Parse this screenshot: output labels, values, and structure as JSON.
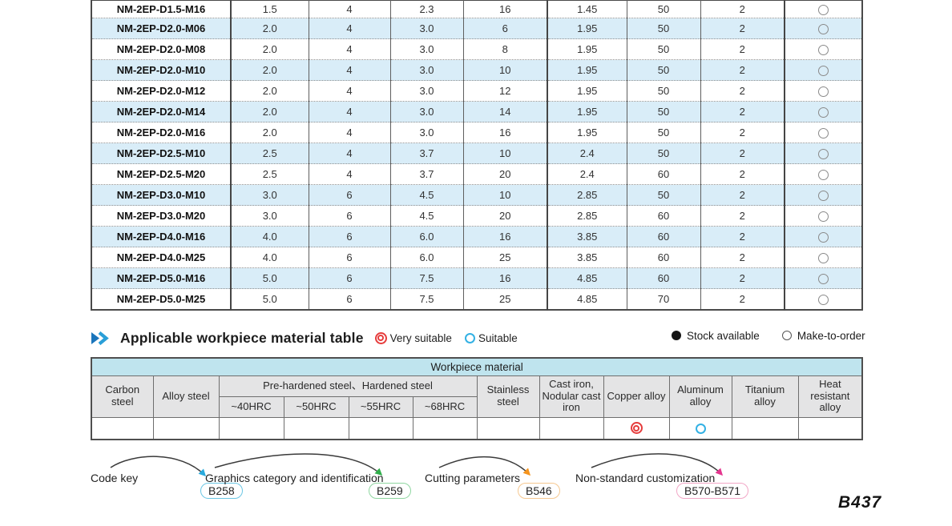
{
  "page_number": "B437",
  "section": {
    "title": "Applicable workpiece material table",
    "legend": {
      "very_suitable": "Very suitable",
      "suitable": "Suitable"
    },
    "stock_legend": {
      "stock_available": "Stock available",
      "make_to_order": "Make-to-order"
    }
  },
  "product_table": {
    "rows": [
      {
        "model": "NM-2EP-D1.5-M16",
        "values": [
          "1.5",
          "4",
          "2.3",
          "16",
          "1.45",
          "50",
          "2"
        ],
        "stock": "make-to-order"
      },
      {
        "model": "NM-2EP-D2.0-M06",
        "values": [
          "2.0",
          "4",
          "3.0",
          "6",
          "1.95",
          "50",
          "2"
        ],
        "stock": "make-to-order"
      },
      {
        "model": "NM-2EP-D2.0-M08",
        "values": [
          "2.0",
          "4",
          "3.0",
          "8",
          "1.95",
          "50",
          "2"
        ],
        "stock": "make-to-order"
      },
      {
        "model": "NM-2EP-D2.0-M10",
        "values": [
          "2.0",
          "4",
          "3.0",
          "10",
          "1.95",
          "50",
          "2"
        ],
        "stock": "make-to-order"
      },
      {
        "model": "NM-2EP-D2.0-M12",
        "values": [
          "2.0",
          "4",
          "3.0",
          "12",
          "1.95",
          "50",
          "2"
        ],
        "stock": "make-to-order"
      },
      {
        "model": "NM-2EP-D2.0-M14",
        "values": [
          "2.0",
          "4",
          "3.0",
          "14",
          "1.95",
          "50",
          "2"
        ],
        "stock": "make-to-order"
      },
      {
        "model": "NM-2EP-D2.0-M16",
        "values": [
          "2.0",
          "4",
          "3.0",
          "16",
          "1.95",
          "50",
          "2"
        ],
        "stock": "make-to-order"
      },
      {
        "model": "NM-2EP-D2.5-M10",
        "values": [
          "2.5",
          "4",
          "3.7",
          "10",
          "2.4",
          "50",
          "2"
        ],
        "stock": "make-to-order"
      },
      {
        "model": "NM-2EP-D2.5-M20",
        "values": [
          "2.5",
          "4",
          "3.7",
          "20",
          "2.4",
          "60",
          "2"
        ],
        "stock": "make-to-order"
      },
      {
        "model": "NM-2EP-D3.0-M10",
        "values": [
          "3.0",
          "6",
          "4.5",
          "10",
          "2.85",
          "50",
          "2"
        ],
        "stock": "make-to-order"
      },
      {
        "model": "NM-2EP-D3.0-M20",
        "values": [
          "3.0",
          "6",
          "4.5",
          "20",
          "2.85",
          "60",
          "2"
        ],
        "stock": "make-to-order"
      },
      {
        "model": "NM-2EP-D4.0-M16",
        "values": [
          "4.0",
          "6",
          "6.0",
          "16",
          "3.85",
          "60",
          "2"
        ],
        "stock": "make-to-order"
      },
      {
        "model": "NM-2EP-D4.0-M25",
        "values": [
          "4.0",
          "6",
          "6.0",
          "25",
          "3.85",
          "60",
          "2"
        ],
        "stock": "make-to-order"
      },
      {
        "model": "NM-2EP-D5.0-M16",
        "values": [
          "5.0",
          "6",
          "7.5",
          "16",
          "4.85",
          "60",
          "2"
        ],
        "stock": "make-to-order"
      },
      {
        "model": "NM-2EP-D5.0-M25",
        "values": [
          "5.0",
          "6",
          "7.5",
          "25",
          "4.85",
          "70",
          "2"
        ],
        "stock": "make-to-order"
      }
    ]
  },
  "workpiece_table": {
    "title": "Workpiece material",
    "columns": [
      "Carbon steel",
      "Alloy steel",
      "Stainless steel",
      "Cast iron, Nodular cast iron",
      "Copper alloy",
      "Aluminum alloy",
      "Titanium alloy",
      "Heat resistant alloy"
    ],
    "group_label": "Pre-hardened steel、Hardened steel",
    "hrc": [
      "~40HRC",
      "~50HRC",
      "~55HRC",
      "~68HRC"
    ],
    "row_marks": [
      "",
      "",
      "",
      "",
      "",
      "",
      "",
      "",
      "very-suitable",
      "suitable",
      "",
      ""
    ]
  },
  "footer": {
    "items": [
      {
        "label": "Code key",
        "badge": "B258",
        "color": "#29aadd"
      },
      {
        "label": "Graphics category and identification",
        "badge": "B259",
        "color": "#2fae4a"
      },
      {
        "label": "Cutting parameters",
        "badge": "B546",
        "color": "#f5941e"
      },
      {
        "label": "Non-standard customization",
        "badge": "B570-B571",
        "color": "#e5368f"
      }
    ]
  },
  "colors": {
    "row_stripe": "#d9edf8",
    "table_title_bg": "#bfe4ee",
    "header_bg": "#e4e4e5",
    "very_suitable": "#e63c3c",
    "suitable": "#33b1e4"
  }
}
